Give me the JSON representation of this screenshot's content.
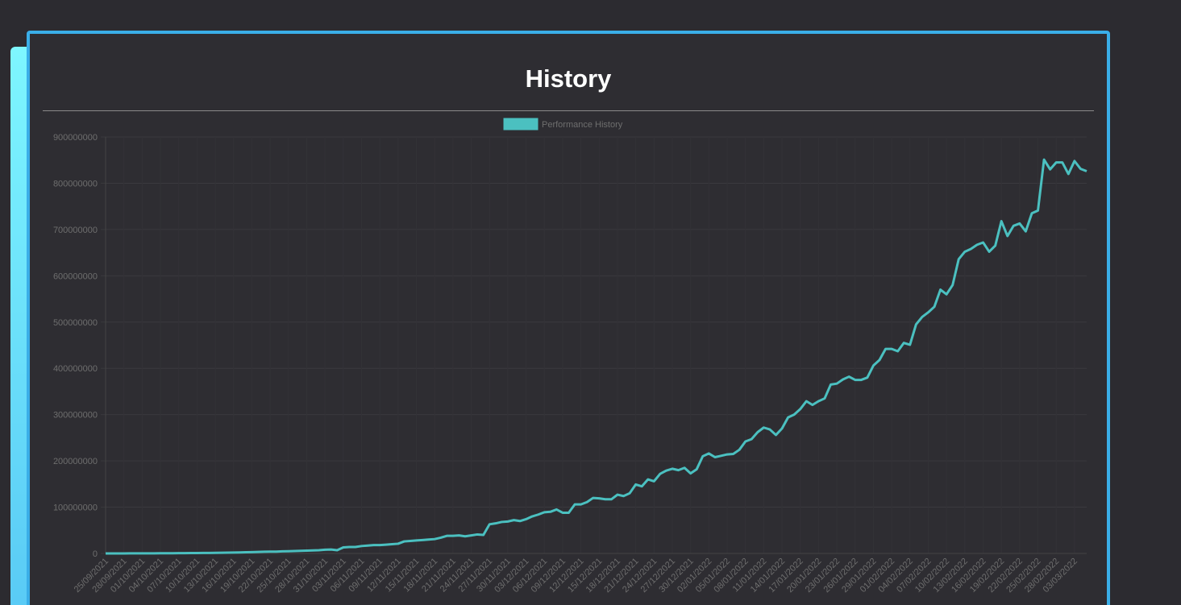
{
  "chart_data": {
    "type": "line",
    "title": "History",
    "categories": [
      "25/09/2021",
      null,
      null,
      "28/09/2021",
      null,
      null,
      "01/10/2021",
      null,
      null,
      "04/10/2021",
      null,
      null,
      "07/10/2021",
      null,
      null,
      "10/10/2021",
      null,
      null,
      "13/10/2021",
      null,
      null,
      "16/10/2021",
      null,
      null,
      "19/10/2021",
      null,
      null,
      "22/10/2021",
      null,
      null,
      "25/10/2021",
      null,
      null,
      "28/10/2021",
      null,
      null,
      "31/10/2021",
      null,
      null,
      "03/11/2021",
      null,
      null,
      "06/11/2021",
      null,
      null,
      "09/11/2021",
      null,
      null,
      "12/11/2021",
      null,
      null,
      "15/11/2021",
      null,
      null,
      "18/11/2021",
      null,
      null,
      "21/11/2021",
      null,
      null,
      "24/11/2021",
      null,
      null,
      "27/11/2021",
      null,
      null,
      "30/11/2021",
      null,
      null,
      "03/12/2021",
      null,
      null,
      "06/12/2021",
      null,
      null,
      "09/12/2021",
      null,
      null,
      "12/12/2021",
      null,
      null,
      "15/12/2021",
      null,
      null,
      "18/12/2021",
      null,
      null,
      "21/12/2021",
      null,
      null,
      "24/12/2021",
      null,
      null,
      "27/12/2021",
      null,
      null,
      "30/12/2021",
      null,
      null,
      "02/01/2022",
      null,
      null,
      "05/01/2022",
      null,
      null,
      "08/01/2022",
      null,
      null,
      "11/01/2022",
      null,
      null,
      "14/01/2022",
      null,
      null,
      "17/01/2022",
      null,
      null,
      "20/01/2022",
      null,
      null,
      "23/01/2022",
      null,
      null,
      "26/01/2022",
      null,
      null,
      "29/01/2022",
      null,
      null,
      "01/02/2022",
      null,
      null,
      "04/02/2022",
      null,
      null,
      "07/02/2022",
      null,
      null,
      "10/02/2022",
      null,
      null,
      "13/02/2022",
      null,
      null,
      "16/02/2022",
      null,
      null,
      "19/02/2022",
      null,
      null,
      "22/02/2022",
      null,
      null,
      "25/02/2022",
      null,
      null,
      "28/02/2022",
      null,
      null,
      "03/03/2022",
      null,
      null
    ],
    "series": [
      {
        "name": "Performance History",
        "color": "#4bc0c0",
        "values": [
          0,
          0,
          100000,
          100000,
          200000,
          200000,
          200000,
          300000,
          300000,
          400000,
          500000,
          500000,
          600000,
          700000,
          800000,
          900000,
          1000000,
          1100000,
          1300000,
          1500000,
          1700000,
          1900000,
          2200000,
          2500000,
          2900000,
          3300000,
          3600000,
          4000000,
          4000000,
          4500000,
          4800000,
          5200000,
          5600000,
          6000000,
          6500000,
          7000000,
          8000000,
          8500000,
          7000000,
          13000000,
          14000000,
          14000000,
          16000000,
          17000000,
          18000000,
          18000000,
          19000000,
          20000000,
          21000000,
          26000000,
          27000000,
          28000000,
          29000000,
          30000000,
          31000000,
          34000000,
          38000000,
          38000000,
          39000000,
          37000000,
          39000000,
          41000000,
          40000000,
          63000000,
          65000000,
          68000000,
          69000000,
          72000000,
          70000000,
          74000000,
          80000000,
          84000000,
          89000000,
          90000000,
          95000000,
          88000000,
          88000000,
          106000000,
          106000000,
          111000000,
          120000000,
          119000000,
          117000000,
          117000000,
          127000000,
          124000000,
          130000000,
          149000000,
          145000000,
          160000000,
          156000000,
          172000000,
          179000000,
          183000000,
          180000000,
          185000000,
          173000000,
          182000000,
          210000000,
          216000000,
          208000000,
          211000000,
          214000000,
          215000000,
          224000000,
          242000000,
          247000000,
          262000000,
          272000000,
          268000000,
          256000000,
          270000000,
          294000000,
          300000000,
          312000000,
          329000000,
          321000000,
          329000000,
          335000000,
          365000000,
          367000000,
          376000000,
          382000000,
          375000000,
          375000000,
          380000000,
          406000000,
          418000000,
          442000000,
          442000000,
          437000000,
          455000000,
          451000000,
          495000000,
          511000000,
          521000000,
          533000000,
          570000000,
          560000000,
          580000000,
          636000000,
          652000000,
          658000000,
          667000000,
          672000000,
          652000000,
          665000000,
          718000000,
          686000000,
          708000000,
          713000000,
          696000000,
          735000000,
          741000000,
          851000000,
          830000000,
          845000000,
          845000000,
          820000000,
          848000000,
          831000000,
          826000000
        ]
      }
    ],
    "ylim": [
      0,
      900000000
    ],
    "yticks": [
      0,
      100000000,
      200000000,
      300000000,
      400000000,
      500000000,
      600000000,
      700000000,
      800000000,
      900000000
    ],
    "grid": true,
    "legend": "top"
  }
}
